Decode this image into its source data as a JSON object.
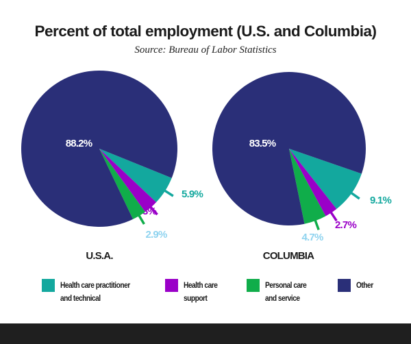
{
  "header": {
    "title": "Percent of total employment (U.S. and Columbia)",
    "subtitle": "Source: Bureau of Labor Statistics"
  },
  "colors": {
    "practitioner": "#13a89e",
    "support": "#9a00c8",
    "personal": "#10ad4a",
    "other": "#2a2f78",
    "personal_label": "#8fd3ef",
    "other_label": "#ffffff",
    "footer": "#1f1f1f"
  },
  "chart_data": [
    {
      "type": "pie",
      "title": "U.S.A.",
      "slices": [
        {
          "key": "practitioner",
          "name": "Health care practitioner and technical",
          "value": 5.9,
          "label": "5.9%"
        },
        {
          "key": "support",
          "name": "Health care support",
          "value": 3.0,
          "label": "3%"
        },
        {
          "key": "personal",
          "name": "Personal care and service",
          "value": 2.9,
          "label": "2.9%"
        },
        {
          "key": "other",
          "name": "Other",
          "value": 88.2,
          "label": "88.2%"
        }
      ]
    },
    {
      "type": "pie",
      "title": "COLUMBIA",
      "slices": [
        {
          "key": "practitioner",
          "name": "Health care practitioner and technical",
          "value": 9.1,
          "label": "9.1%"
        },
        {
          "key": "support",
          "name": "Health care support",
          "value": 2.7,
          "label": "2.7%"
        },
        {
          "key": "personal",
          "name": "Personal care and service",
          "value": 4.7,
          "label": "4.7%"
        },
        {
          "key": "other",
          "name": "Other",
          "value": 83.5,
          "label": "83.5%"
        }
      ]
    }
  ],
  "legend": {
    "placement": "bottom",
    "items": [
      {
        "key": "practitioner",
        "label": "Health care practitioner\nand technical"
      },
      {
        "key": "support",
        "label": "Health care\nsupport"
      },
      {
        "key": "personal",
        "label": "Personal care\nand service"
      },
      {
        "key": "other",
        "label": "Other"
      }
    ]
  }
}
